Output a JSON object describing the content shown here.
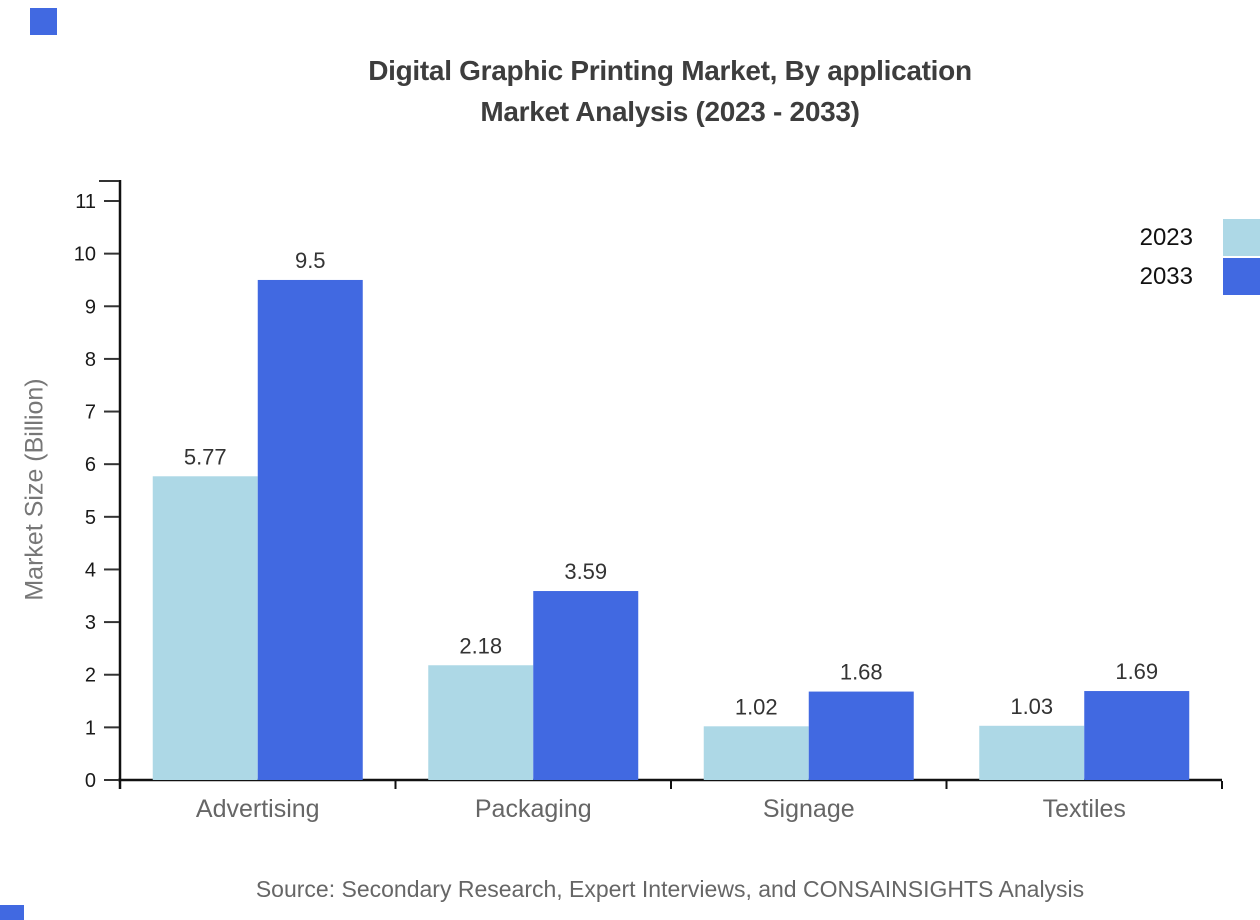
{
  "title": {
    "line1": "Digital Graphic Printing Market, By application",
    "line2": "Market Analysis (2023 - 2033)"
  },
  "axes": {
    "y_title": "Market Size (Billion)"
  },
  "legend": {
    "items": [
      {
        "label": "2023",
        "color": "#add8e6"
      },
      {
        "label": "2033",
        "color": "#4169e1"
      }
    ]
  },
  "footer": {
    "source": "Source: Secondary Research, Expert Interviews, and CONSAINSIGHTS Analysis"
  },
  "decor": {
    "accent_color": "#4169e1"
  },
  "chart_data": {
    "type": "bar",
    "title": "Digital Graphic Printing Market, By application Market Analysis (2023 - 2033)",
    "categories": [
      "Advertising",
      "Packaging",
      "Signage",
      "Textiles"
    ],
    "series": [
      {
        "name": "2023",
        "color": "#add8e6",
        "values": [
          5.77,
          2.18,
          1.02,
          1.03
        ],
        "labels": [
          "5.77",
          "2.18",
          "1.02",
          "1.03"
        ]
      },
      {
        "name": "2033",
        "color": "#4169e1",
        "values": [
          9.5,
          3.59,
          1.68,
          1.69
        ],
        "labels": [
          "9.5",
          "3.59",
          "1.68",
          "1.69"
        ]
      }
    ],
    "xlabel": "",
    "ylabel": "Market Size (Billion)",
    "ylim": [
      0,
      11
    ],
    "ytick_step": 1,
    "grid": false,
    "legend_position": "top-right",
    "data_labels_shown": true
  }
}
